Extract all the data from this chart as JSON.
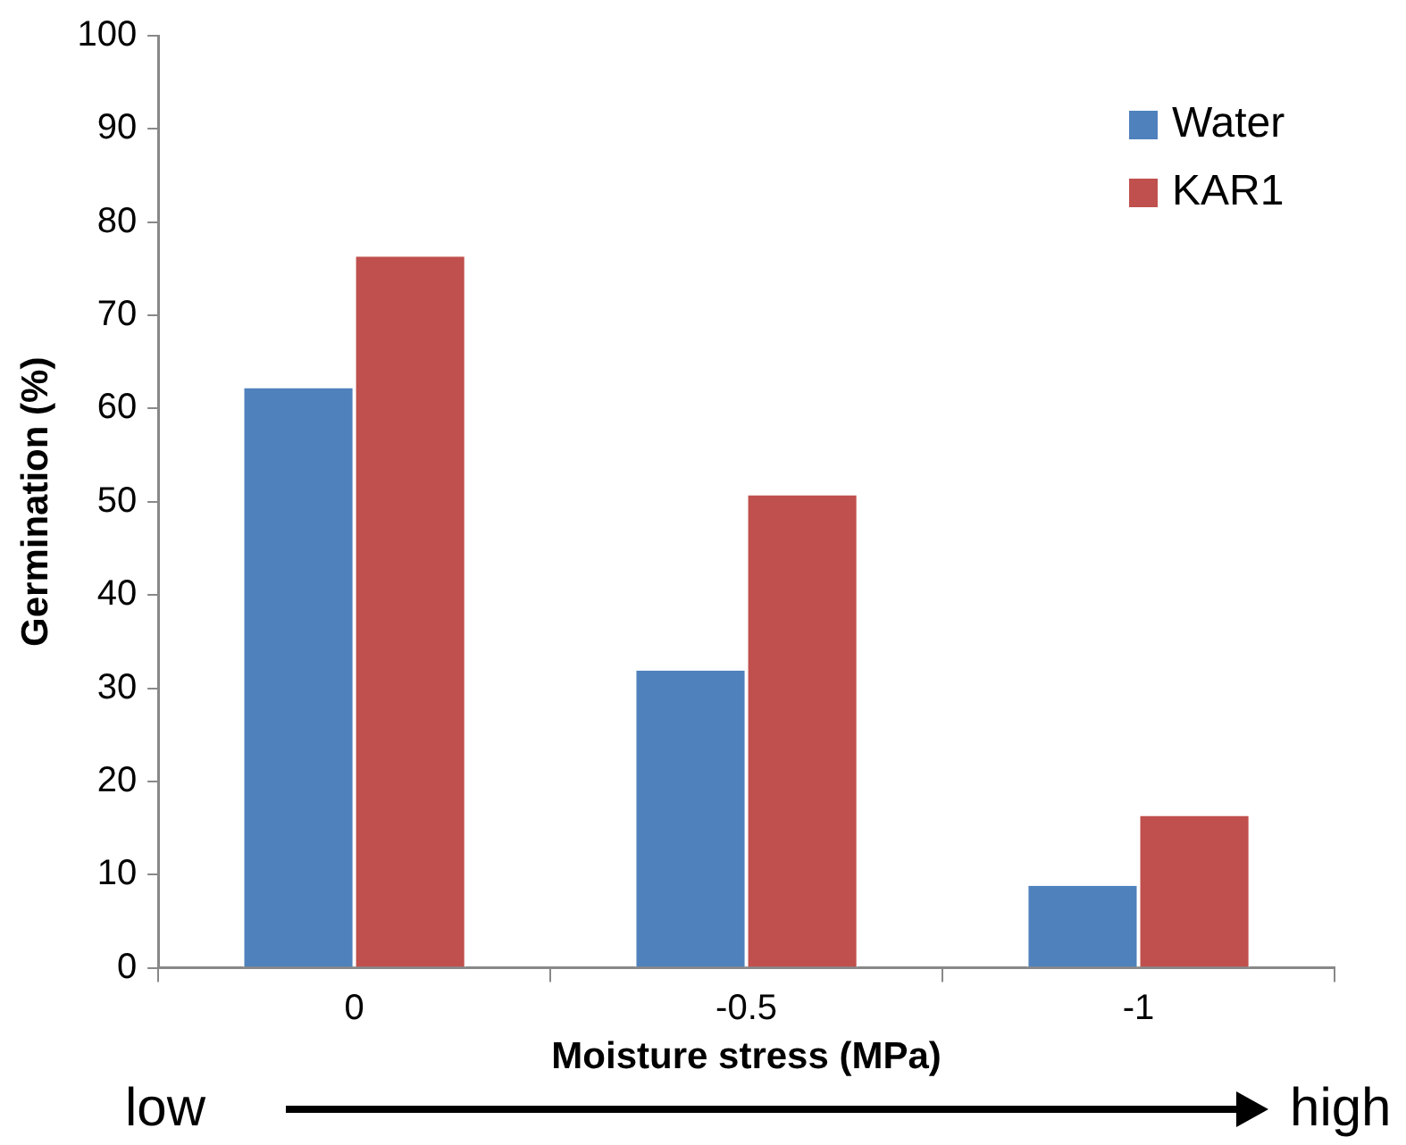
{
  "chart_data": {
    "type": "bar",
    "categories": [
      "0",
      "-0.5",
      "-1"
    ],
    "series": [
      {
        "name": "Water",
        "color": "#4f81bd",
        "values": [
          62.2,
          31.9,
          8.8
        ]
      },
      {
        "name": "KAR1",
        "color": "#c0504d",
        "values": [
          76.3,
          50.7,
          16.3
        ]
      }
    ],
    "xlabel": "Moisture stress (MPa)",
    "ylabel": "Germination (%)",
    "ylim": [
      0,
      100
    ],
    "yticks": [
      0,
      10,
      20,
      30,
      40,
      50,
      60,
      70,
      80,
      90,
      100
    ],
    "grid": false,
    "legend": "top right",
    "annotations": [
      "low",
      "high"
    ]
  }
}
